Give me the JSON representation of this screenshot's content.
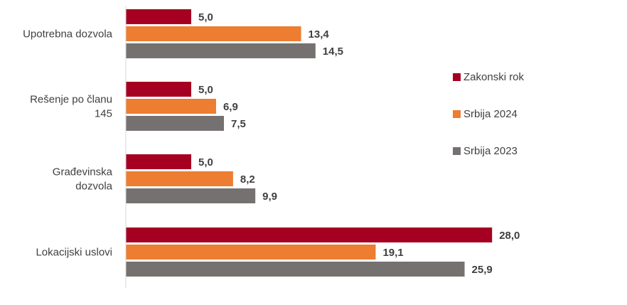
{
  "chart_data": {
    "type": "bar",
    "orientation": "horizontal",
    "categories": [
      [
        "Upotrebna dozvola"
      ],
      [
        "Rešenje po članu",
        "145"
      ],
      [
        "Građevinska",
        "dozvola"
      ],
      [
        "Lokacijski uslovi"
      ]
    ],
    "series": [
      {
        "name": "Zakonski rok",
        "color": "#a50021",
        "values": [
          5.0,
          5.0,
          5.0,
          28.0
        ],
        "labels": [
          "5,0",
          "5,0",
          "5,0",
          "28,0"
        ]
      },
      {
        "name": "Srbija 2024",
        "color": "#ed7d31",
        "values": [
          13.4,
          6.9,
          8.2,
          19.1
        ],
        "labels": [
          "13,4",
          "6,9",
          "8,2",
          "19,1"
        ]
      },
      {
        "name": "Srbija 2023",
        "color": "#767171",
        "values": [
          14.5,
          7.5,
          9.9,
          25.9
        ],
        "labels": [
          "14,5",
          "7,5",
          "9,9",
          "25,9"
        ]
      }
    ],
    "xlim": [
      0,
      30
    ],
    "legend_position": "right",
    "grid": false
  }
}
